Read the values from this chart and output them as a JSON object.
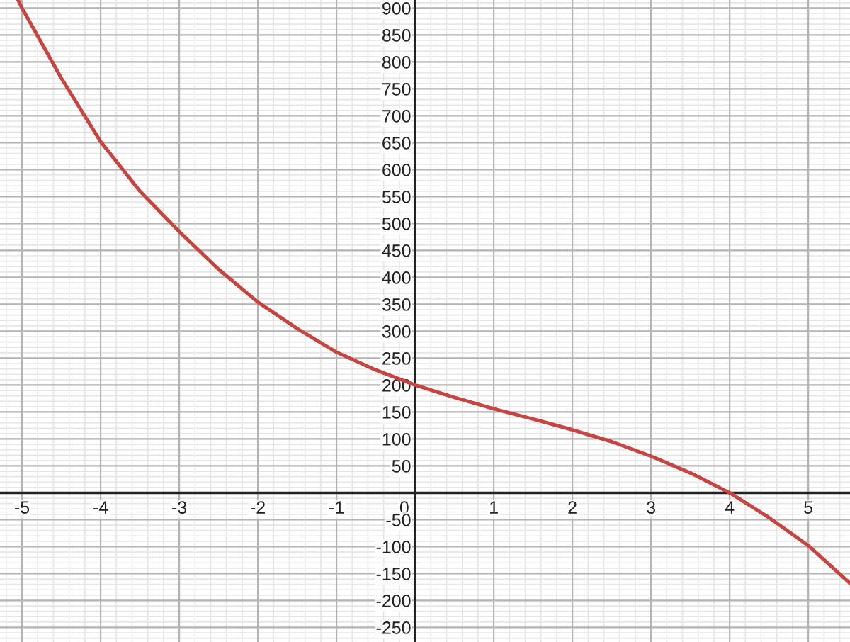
{
  "chart_data": {
    "type": "line",
    "color": "#c74440",
    "line_style": "solid",
    "marker": "none",
    "grid": true,
    "legend": false,
    "x": [
      -5.05,
      -5,
      -4.5,
      -4,
      -3.5,
      -3,
      -2.5,
      -2,
      -1.5,
      -1,
      -0.5,
      0,
      0.5,
      1,
      1.5,
      2,
      2.5,
      3,
      3.5,
      4,
      4.5,
      5,
      5.53
    ],
    "values": [
      915,
      900,
      770,
      652,
      560,
      485,
      415,
      354,
      305,
      261,
      228,
      200,
      177,
      156,
      137,
      117,
      95,
      68,
      37,
      0,
      -46,
      -98,
      -168
    ],
    "xlim": [
      -5.28,
      5.53
    ],
    "ylim": [
      -277,
      915
    ],
    "xticks": [
      -5,
      -4,
      -3,
      -2,
      -1,
      0,
      1,
      2,
      3,
      4,
      5
    ],
    "yticks": [
      -250,
      -200,
      -150,
      -100,
      -50,
      50,
      100,
      150,
      200,
      250,
      300,
      350,
      400,
      450,
      500,
      550,
      600,
      650,
      700,
      750,
      800,
      850,
      900
    ]
  }
}
